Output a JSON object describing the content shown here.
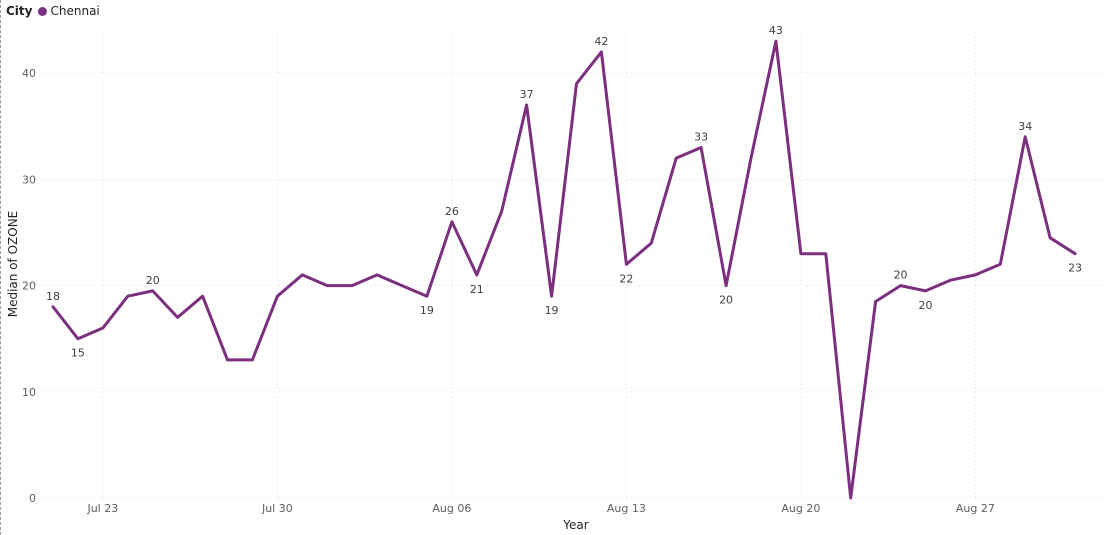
{
  "legend": {
    "title": "City",
    "items": [
      {
        "name": "Chennai",
        "color": "#7b2f7f"
      }
    ]
  },
  "chart_data": {
    "type": "line",
    "xlabel": "Year",
    "ylabel": "Median of OZONE",
    "ylim": [
      0,
      45
    ],
    "yticks": [
      0,
      10,
      20,
      30,
      40
    ],
    "xticks": [
      {
        "date": "2023-07-23",
        "label": "Jul 23"
      },
      {
        "date": "2023-07-30",
        "label": "Jul 30"
      },
      {
        "date": "2023-08-06",
        "label": "Aug 06"
      },
      {
        "date": "2023-08-13",
        "label": "Aug 13"
      },
      {
        "date": "2023-08-20",
        "label": "Aug 20"
      },
      {
        "date": "2023-08-27",
        "label": "Aug 27"
      }
    ],
    "x_range": [
      "2023-07-21",
      "2023-09-01"
    ],
    "grid": true,
    "legend_position": "top-left",
    "series": [
      {
        "name": "Chennai",
        "color": "#7b2f7f",
        "points": [
          {
            "x": "2023-07-21",
            "y": 18,
            "label": "18",
            "label_pos": "above"
          },
          {
            "x": "2023-07-22",
            "y": 15,
            "label": "15",
            "label_pos": "below"
          },
          {
            "x": "2023-07-23",
            "y": 16
          },
          {
            "x": "2023-07-24",
            "y": 19
          },
          {
            "x": "2023-07-25",
            "y": 19.5,
            "label": "20",
            "label_pos": "above"
          },
          {
            "x": "2023-07-26",
            "y": 17
          },
          {
            "x": "2023-07-27",
            "y": 19
          },
          {
            "x": "2023-07-28",
            "y": 13
          },
          {
            "x": "2023-07-29",
            "y": 13
          },
          {
            "x": "2023-07-30",
            "y": 19
          },
          {
            "x": "2023-07-31",
            "y": 21
          },
          {
            "x": "2023-08-01",
            "y": 20
          },
          {
            "x": "2023-08-02",
            "y": 20
          },
          {
            "x": "2023-08-03",
            "y": 21
          },
          {
            "x": "2023-08-04",
            "y": 20
          },
          {
            "x": "2023-08-05",
            "y": 19,
            "label": "19",
            "label_pos": "below"
          },
          {
            "x": "2023-08-06",
            "y": 26,
            "label": "26",
            "label_pos": "above"
          },
          {
            "x": "2023-08-07",
            "y": 21,
            "label": "21",
            "label_pos": "below"
          },
          {
            "x": "2023-08-08",
            "y": 27
          },
          {
            "x": "2023-08-09",
            "y": 37,
            "label": "37",
            "label_pos": "above"
          },
          {
            "x": "2023-08-10",
            "y": 19,
            "label": "19",
            "label_pos": "below"
          },
          {
            "x": "2023-08-11",
            "y": 39
          },
          {
            "x": "2023-08-12",
            "y": 42,
            "label": "42",
            "label_pos": "above"
          },
          {
            "x": "2023-08-13",
            "y": 22,
            "label": "22",
            "label_pos": "below"
          },
          {
            "x": "2023-08-14",
            "y": 24
          },
          {
            "x": "2023-08-15",
            "y": 32
          },
          {
            "x": "2023-08-16",
            "y": 33,
            "label": "33",
            "label_pos": "above"
          },
          {
            "x": "2023-08-17",
            "y": 20,
            "label": "20",
            "label_pos": "below"
          },
          {
            "x": "2023-08-18",
            "y": 32
          },
          {
            "x": "2023-08-19",
            "y": 43,
            "label": "43",
            "label_pos": "above"
          },
          {
            "x": "2023-08-20",
            "y": 23
          },
          {
            "x": "2023-08-21",
            "y": 23
          },
          {
            "x": "2023-08-22",
            "y": 0
          },
          {
            "x": "2023-08-23",
            "y": 18.5
          },
          {
            "x": "2023-08-24",
            "y": 20,
            "label": "20",
            "label_pos": "above"
          },
          {
            "x": "2023-08-25",
            "y": 19.5,
            "label": "20",
            "label_pos": "below"
          },
          {
            "x": "2023-08-26",
            "y": 20.5
          },
          {
            "x": "2023-08-27",
            "y": 21
          },
          {
            "x": "2023-08-28",
            "y": 22
          },
          {
            "x": "2023-08-29",
            "y": 34,
            "label": "34",
            "label_pos": "above"
          },
          {
            "x": "2023-08-30",
            "y": 24.5
          },
          {
            "x": "2023-08-31",
            "y": 23,
            "label": "23",
            "label_pos": "below"
          }
        ]
      }
    ]
  }
}
